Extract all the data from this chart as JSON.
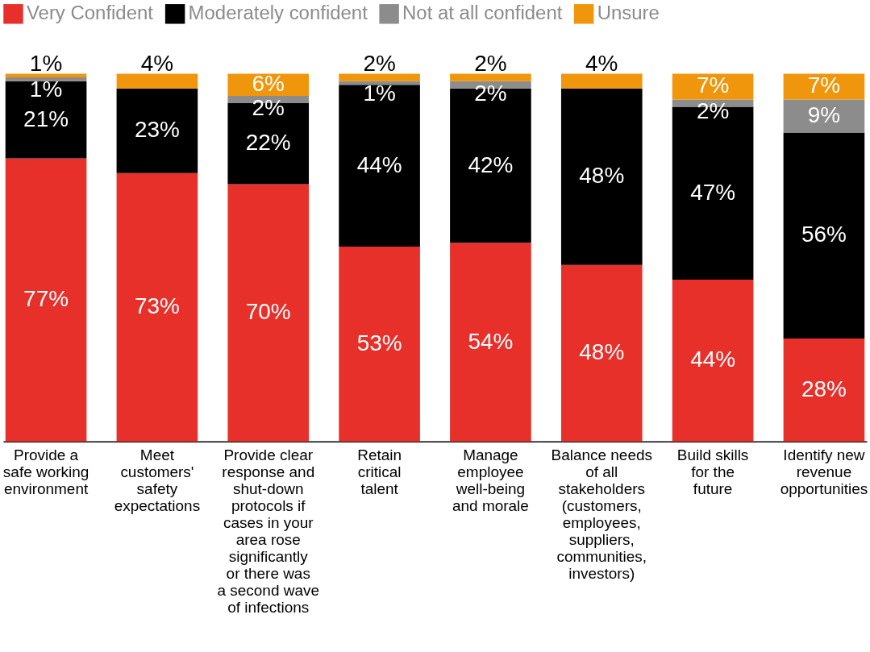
{
  "chart_data": {
    "type": "bar",
    "stacked": true,
    "legend": "top",
    "categories": [
      "Provide a safe working environment",
      "Meet customers' safety expectations",
      "Provide clear response and shut-down protocols if cases in your area rose significantly or there was a second wave of infections",
      "Retain critical talent",
      "Manage employee well-being and morale",
      "Balance needs of all stakeholders (customers, employees, suppliers, communities, investors)",
      "Build skills for the future",
      "Identify new revenue opportunities"
    ],
    "series": [
      {
        "name": "Very Confident",
        "color": "#e8302a",
        "values": [
          77,
          73,
          70,
          53,
          54,
          48,
          44,
          28
        ],
        "value_labels": [
          "77%",
          "73%",
          "70%",
          "53%",
          "54%",
          "48%",
          "44%",
          "28%"
        ]
      },
      {
        "name": "Moderately confident",
        "color": "#000000",
        "values": [
          21,
          23,
          22,
          44,
          42,
          48,
          47,
          56
        ],
        "value_labels": [
          "21%",
          "23%",
          "22%",
          "44%",
          "42%",
          "48%",
          "47%",
          "56%"
        ]
      },
      {
        "name": "Not at all confident",
        "color": "#8c8c8c",
        "values": [
          1,
          null,
          2,
          1,
          2,
          null,
          2,
          9
        ],
        "value_labels": [
          "1%",
          null,
          "2%",
          "1%",
          "2%",
          null,
          "2%",
          "9%"
        ]
      },
      {
        "name": "Unsure",
        "color": "#f0960c",
        "values": [
          1,
          4,
          6,
          2,
          2,
          4,
          7,
          7
        ],
        "value_labels": [
          "1%",
          "4%",
          "6%",
          "2%",
          "2%",
          "4%",
          "7%",
          "7%"
        ]
      }
    ]
  }
}
